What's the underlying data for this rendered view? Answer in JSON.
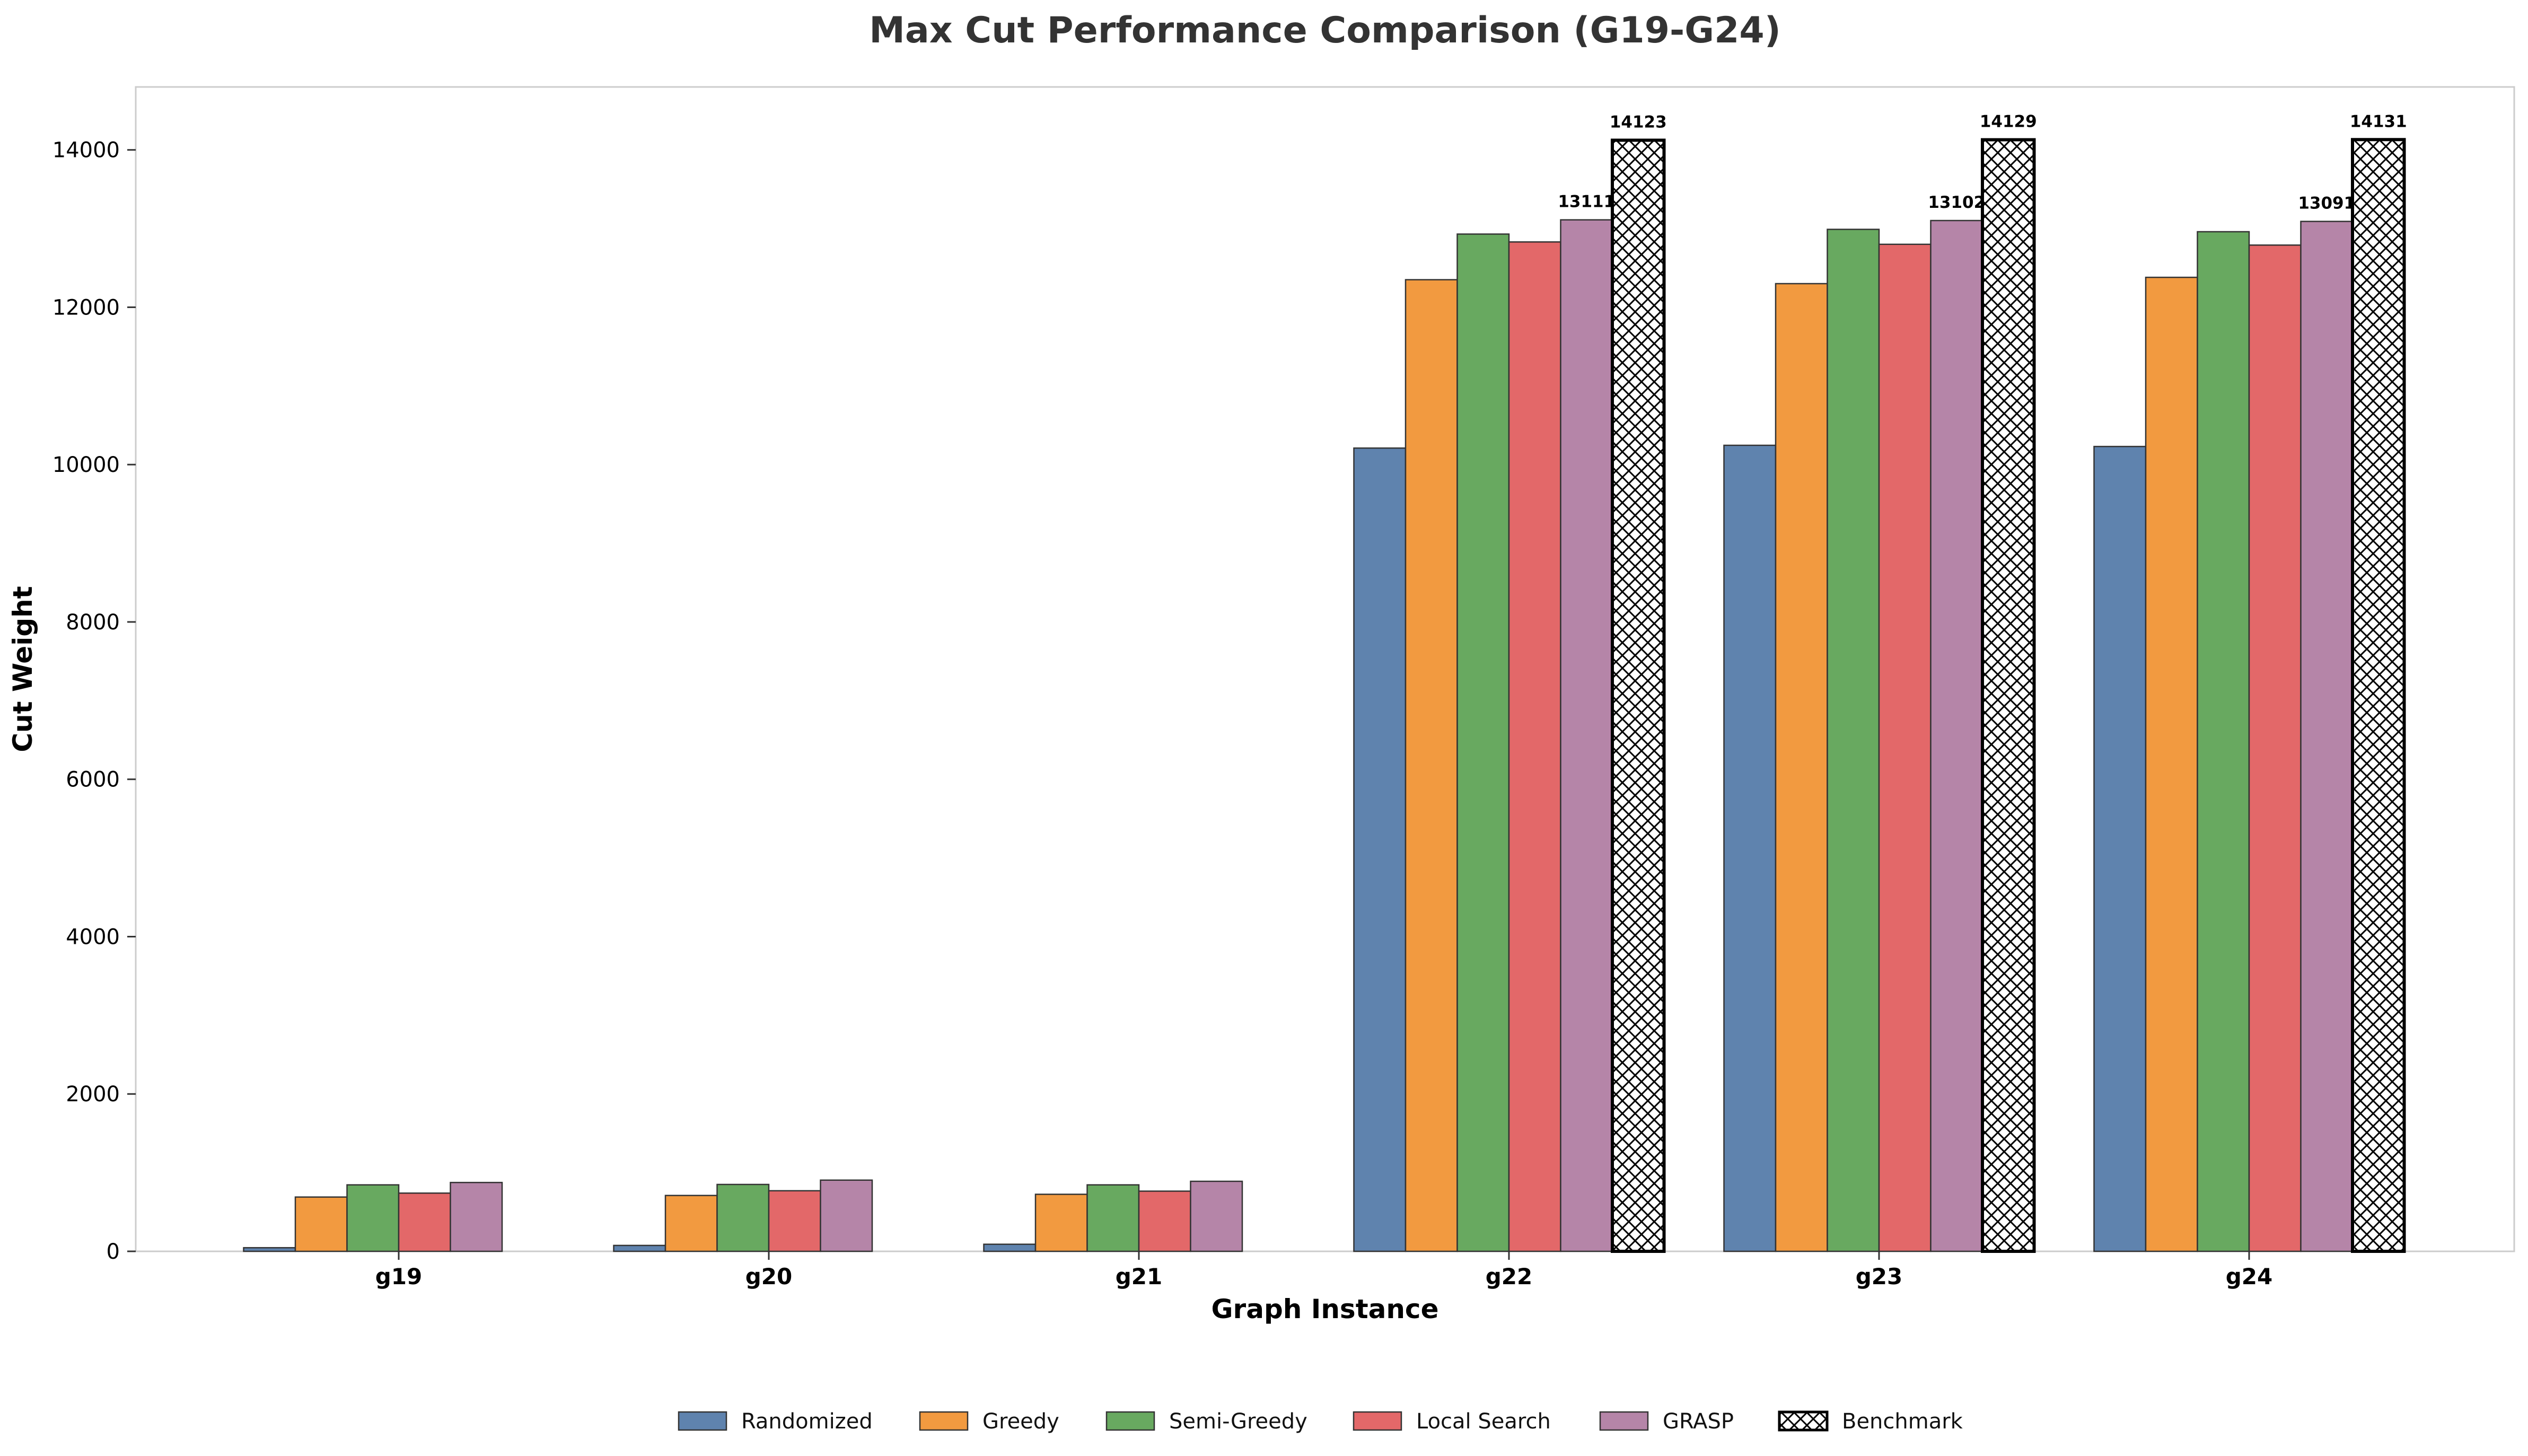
{
  "chart_data": {
    "type": "bar",
    "title": "Max Cut Performance Comparison (G19-G24)",
    "xlabel": "Graph Instance",
    "ylabel": "Cut Weight",
    "categories": [
      "g19",
      "g20",
      "g21",
      "g22",
      "g23",
      "g24"
    ],
    "ylim": [
      0,
      14800
    ],
    "yticks": [
      0,
      2000,
      4000,
      6000,
      8000,
      10000,
      12000,
      14000
    ],
    "grid": false,
    "legend_position": "bottom-center",
    "series": [
      {
        "name": "Randomized",
        "color": "#5f83ae",
        "values": [
          46,
          75,
          90,
          10210,
          10245,
          10230
        ]
      },
      {
        "name": "Greedy",
        "color": "#f29a40",
        "values": [
          690,
          710,
          725,
          12350,
          12300,
          12380
        ]
      },
      {
        "name": "Semi-Greedy",
        "color": "#68a960",
        "values": [
          845,
          850,
          845,
          12930,
          12990,
          12960
        ]
      },
      {
        "name": "Local Search",
        "color": "#e36869",
        "values": [
          740,
          770,
          765,
          12830,
          12800,
          12790
        ]
      },
      {
        "name": "GRASP",
        "color": "#b585a8",
        "values": [
          875,
          905,
          890,
          13111,
          13102,
          13091
        ],
        "data_labels": [
          "",
          "",
          "",
          "13111",
          "13102",
          "13091"
        ]
      },
      {
        "name": "Benchmark",
        "color": "#ffffff",
        "hatch": "crosshatch",
        "values": [
          0,
          0,
          0,
          14123,
          14129,
          14131
        ],
        "data_labels": [
          "",
          "",
          "",
          "14123",
          "14129",
          "14131"
        ]
      }
    ]
  }
}
